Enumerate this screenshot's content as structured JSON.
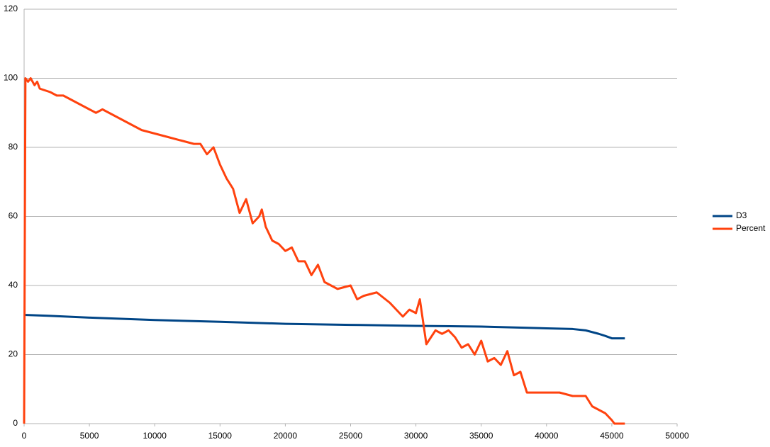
{
  "chart_data": {
    "type": "line",
    "xlim": [
      0,
      50000
    ],
    "xticks": [
      0,
      5000,
      10000,
      15000,
      20000,
      25000,
      30000,
      35000,
      40000,
      45000,
      50000
    ],
    "ylim": [
      0,
      120
    ],
    "yticks": [
      0,
      20,
      40,
      60,
      80,
      100,
      120
    ],
    "grid": true,
    "legend": "right",
    "series": [
      {
        "name": "D3",
        "color": "#004586",
        "x": [
          0,
          2000,
          5000,
          10000,
          15000,
          20000,
          25000,
          30000,
          35000,
          40000,
          42000,
          43000,
          44000,
          44500,
          45000,
          46000
        ],
        "values": [
          31.5,
          31.2,
          30.7,
          30,
          29.5,
          28.9,
          28.6,
          28.3,
          28.1,
          27.6,
          27.4,
          27,
          26,
          25.4,
          24.7,
          24.7
        ]
      },
      {
        "name": "Percent",
        "color": "#ff420e",
        "x": [
          0,
          100,
          300,
          500,
          800,
          1000,
          1200,
          2000,
          2500,
          3000,
          3500,
          4000,
          4500,
          5000,
          5500,
          6000,
          6500,
          7000,
          7500,
          8000,
          8500,
          9000,
          10000,
          11000,
          12000,
          13000,
          13500,
          14000,
          14500,
          15000,
          15500,
          16000,
          16500,
          17000,
          17500,
          18000,
          18200,
          18500,
          19000,
          19500,
          20000,
          20500,
          21000,
          21500,
          22000,
          22500,
          23000,
          23500,
          24000,
          25000,
          25500,
          26000,
          27000,
          28000,
          29000,
          29500,
          30000,
          30300,
          30800,
          31500,
          32000,
          32500,
          33000,
          33500,
          34000,
          34500,
          35000,
          35500,
          36000,
          36500,
          37000,
          37500,
          38000,
          38500,
          39000,
          40000,
          41000,
          42000,
          43000,
          43500,
          44000,
          44500,
          45000,
          45200,
          46000
        ],
        "values": [
          0,
          100,
          99,
          100,
          98,
          99,
          97,
          96,
          95,
          95,
          94,
          93,
          92,
          91,
          90,
          91,
          90,
          89,
          88,
          87,
          86,
          85,
          84,
          83,
          82,
          81,
          81,
          78,
          80,
          75,
          71,
          68,
          61,
          65,
          58,
          60,
          62,
          57,
          53,
          52,
          50,
          51,
          47,
          47,
          43,
          46,
          41,
          40,
          39,
          40,
          36,
          37,
          38,
          35,
          31,
          33,
          32,
          36,
          23,
          27,
          26,
          27,
          25,
          22,
          23,
          20,
          24,
          18,
          19,
          17,
          21,
          14,
          15,
          9,
          9,
          9,
          9,
          8,
          8,
          5,
          4,
          3,
          1,
          0,
          0
        ]
      }
    ]
  }
}
